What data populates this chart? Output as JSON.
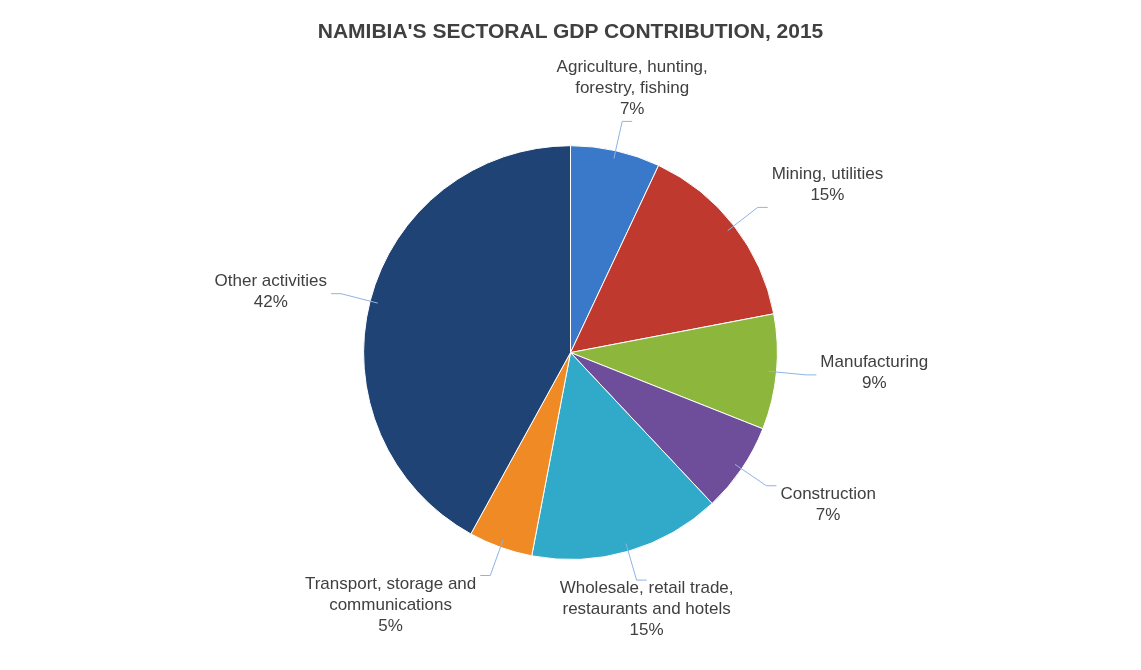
{
  "chart_data": {
    "type": "pie",
    "title": "NAMIBIA'S SECTORAL GDP CONTRIBUTION, 2015",
    "categories": [
      "Agriculture, hunting, forestry, fishing",
      "Mining, utilities",
      "Manufacturing",
      "Construction",
      "Wholesale, retail trade, restaurants and hotels",
      "Transport, storage and communications",
      "Other activities"
    ],
    "values": [
      7,
      15,
      9,
      7,
      15,
      5,
      42
    ],
    "value_labels": [
      "7%",
      "15%",
      "9%",
      "7%",
      "15%",
      "5%",
      "42%"
    ],
    "colors": [
      "#3a78c9",
      "#c0392f",
      "#8db63c",
      "#6e4e9b",
      "#31a9c9",
      "#f08a24",
      "#1f4374"
    ],
    "legend": false
  }
}
